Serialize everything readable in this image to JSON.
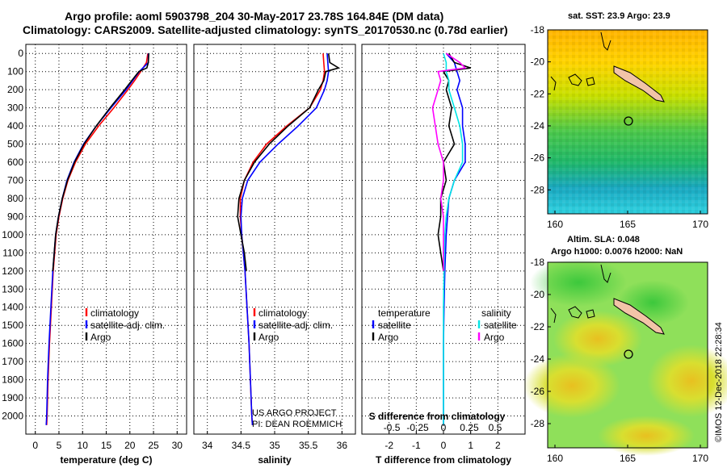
{
  "header": {
    "title_line1": "Argo profile: aoml 5903798_204 30-May-2017 23.78S 164.84E (DM data)",
    "title_line2": "Climatology: CARS2009. Satellite-adjusted climatology: synTS_20170530.nc (0.78d earlier)"
  },
  "colors": {
    "climatology": "#ff0000",
    "satellite": "#0000ff",
    "argo": "#000000",
    "t_satellite": "#0000ff",
    "t_argo": "#000000",
    "s_satellite": "#00e5e5",
    "s_argo": "#ff00ff"
  },
  "credits": {
    "line1": "US ARGO PROJECT",
    "line2": "PI: DEAN ROEMMICH"
  },
  "stamp": "©IMOS 12-Dec-2018 22:28:34",
  "chart_data": [
    {
      "type": "line",
      "id": "temperature",
      "xlabel": "temperature (deg C)",
      "xlim": [
        -2,
        32
      ],
      "xticks": [
        0,
        5,
        10,
        15,
        20,
        25,
        30
      ],
      "ylim": [
        2100,
        -50
      ],
      "yticks": [
        0,
        100,
        200,
        300,
        400,
        500,
        600,
        700,
        800,
        900,
        1000,
        1100,
        1200,
        1300,
        1400,
        1500,
        1600,
        1700,
        1800,
        1900,
        2000
      ],
      "grid": true,
      "legend": [
        "climatology",
        "satellite-adj. clim.",
        "Argo"
      ],
      "series": [
        {
          "name": "climatology",
          "color": "#ff0000",
          "depth": [
            0,
            50,
            100,
            150,
            200,
            300,
            400,
            500,
            600,
            700,
            800,
            900,
            1000,
            1200,
            1400,
            1600,
            1800,
            2000,
            2050
          ],
          "values": [
            23.8,
            23.5,
            22.3,
            21.0,
            19.6,
            16.6,
            13.4,
            10.6,
            8.5,
            6.9,
            5.8,
            5.0,
            4.4,
            3.8,
            3.4,
            3.0,
            2.7,
            2.5,
            2.4
          ]
        },
        {
          "name": "satellite-adj. clim.",
          "color": "#0000ff",
          "depth": [
            0,
            50,
            100,
            150,
            200,
            300,
            400,
            500,
            600,
            700,
            800,
            900,
            1000,
            1200,
            1400,
            1600,
            1800,
            2000,
            2050
          ],
          "values": [
            23.9,
            23.9,
            22.0,
            20.6,
            19.2,
            16.0,
            12.9,
            10.2,
            8.2,
            6.7,
            5.7,
            4.9,
            4.3,
            3.7,
            3.3,
            2.9,
            2.6,
            2.4,
            2.3
          ]
        },
        {
          "name": "Argo",
          "color": "#000000",
          "depth": [
            0,
            50,
            80,
            100,
            150,
            200,
            300,
            400,
            500,
            600,
            700,
            800,
            900,
            1000,
            1100,
            1200
          ],
          "values": [
            24.0,
            23.9,
            23.6,
            21.9,
            20.4,
            18.9,
            15.8,
            12.9,
            10.3,
            8.3,
            6.8,
            5.7,
            4.9,
            4.3,
            4.0,
            3.7
          ]
        }
      ]
    },
    {
      "type": "line",
      "id": "salinity",
      "xlabel": "salinity",
      "xlim": [
        33.8,
        36.2
      ],
      "xticks": [
        34,
        34.5,
        35,
        35.5,
        36
      ],
      "ylim": [
        2100,
        -50
      ],
      "grid": true,
      "legend": [
        "climatology",
        "satellite-adj. clim.",
        "Argo"
      ],
      "series": [
        {
          "name": "climatology",
          "color": "#ff0000",
          "depth": [
            0,
            50,
            100,
            150,
            200,
            300,
            400,
            500,
            600,
            700,
            800,
            900,
            1000,
            1200,
            1400,
            1600,
            1800,
            2000,
            2050
          ],
          "values": [
            35.72,
            35.73,
            35.74,
            35.72,
            35.68,
            35.52,
            35.18,
            34.88,
            34.68,
            34.55,
            34.49,
            34.49,
            34.51,
            34.56,
            34.59,
            34.62,
            34.64,
            34.66,
            34.67
          ]
        },
        {
          "name": "satellite-adj. clim.",
          "color": "#0000ff",
          "depth": [
            0,
            50,
            100,
            150,
            200,
            300,
            400,
            500,
            600,
            700,
            800,
            900,
            1000,
            1200,
            1400,
            1600,
            1800,
            2000,
            2050
          ],
          "values": [
            35.78,
            35.79,
            35.8,
            35.78,
            35.74,
            35.62,
            35.35,
            35.05,
            34.78,
            34.6,
            34.52,
            34.5,
            34.51,
            34.56,
            34.59,
            34.62,
            34.64,
            34.66,
            34.67
          ]
        },
        {
          "name": "Argo",
          "color": "#000000",
          "depth": [
            0,
            50,
            80,
            100,
            150,
            200,
            300,
            400,
            500,
            600,
            700,
            800,
            900,
            1000,
            1100,
            1200
          ],
          "values": [
            35.8,
            35.82,
            35.95,
            35.76,
            35.73,
            35.65,
            35.52,
            35.2,
            34.92,
            34.7,
            34.55,
            34.47,
            34.45,
            34.5,
            34.55,
            34.58
          ]
        }
      ]
    },
    {
      "type": "line",
      "id": "difference",
      "xlabel": "T difference from climatology",
      "xlabel_top": "S difference from climatology",
      "xlim": [
        -3,
        3
      ],
      "xticks": [
        -2,
        -1,
        0,
        1,
        2
      ],
      "sticks": [
        "-0.5",
        "-0.25",
        "0",
        "0.25",
        "0.5"
      ],
      "ylim": [
        2100,
        -50
      ],
      "grid": true,
      "legend_left_title": "temperature",
      "legend_right_title": "salinity",
      "legend": [
        "satellite",
        "Argo",
        "satellite",
        "Argo"
      ],
      "series": [
        {
          "name": "T satellite",
          "color": "#0000ff",
          "depth": [
            0,
            50,
            100,
            150,
            200,
            300,
            400,
            500,
            600,
            700,
            800,
            900,
            1000,
            1200,
            1400,
            1600,
            1800,
            2000,
            2050
          ],
          "values": [
            0.1,
            0.4,
            0.5,
            0.6,
            0.5,
            0.7,
            0.7,
            0.8,
            0.8,
            0.4,
            0.2,
            0.15,
            0.1,
            0.05,
            0.02,
            0,
            0,
            0,
            0
          ]
        },
        {
          "name": "T Argo",
          "color": "#000000",
          "depth": [
            0,
            50,
            80,
            100,
            150,
            200,
            300,
            400,
            500,
            600,
            700,
            800,
            900,
            1000,
            1100,
            1200
          ],
          "values": [
            0.2,
            0.4,
            1.0,
            0.0,
            0.2,
            0.1,
            0.3,
            0.2,
            0.4,
            0.0,
            0.1,
            -0.1,
            -0.1,
            -0.2,
            -0.1,
            0
          ]
        },
        {
          "name": "S satellite",
          "color": "#00e5e5",
          "depth": [
            0,
            50,
            100,
            150,
            200,
            300,
            400,
            500,
            600,
            700,
            800,
            900,
            1000,
            1200,
            1400,
            1600,
            1800,
            2000,
            2050
          ],
          "values": [
            0.0,
            0.1,
            0.1,
            0.2,
            0.2,
            0.4,
            0.6,
            0.7,
            0.7,
            0.4,
            0.2,
            0.1,
            0.05,
            0.02,
            0,
            0,
            0,
            0,
            0
          ]
        },
        {
          "name": "S Argo",
          "color": "#ff00ff",
          "depth": [
            0,
            50,
            80,
            100,
            150,
            200,
            300,
            400,
            500,
            600,
            700,
            800,
            900,
            1000,
            1100,
            1200
          ],
          "values": [
            0.1,
            0.6,
            0.8,
            -0.2,
            -0.1,
            -0.2,
            -0.4,
            -0.3,
            -0.2,
            0.0,
            0.0,
            -0.1,
            0.0,
            0.0,
            0.0,
            0.0
          ]
        }
      ]
    },
    {
      "type": "heatmap",
      "id": "sst_map",
      "title": "sat. SST: 23.9  Argo: 23.9",
      "xlim": [
        159.5,
        170.5
      ],
      "ylim": [
        -29.5,
        -18
      ],
      "xticks": [
        160,
        165,
        170
      ],
      "yticks": [
        -18,
        -20,
        -22,
        -24,
        -26,
        -28
      ],
      "argo_position": {
        "lon": 164.84,
        "lat": -23.78
      }
    },
    {
      "type": "heatmap",
      "id": "sla_map",
      "title_line1": "Altim. SLA: 0.048",
      "title_line2": "Argo h1000: 0.0076 h2000: NaN",
      "xlim": [
        159.5,
        170.5
      ],
      "ylim": [
        -29.5,
        -18
      ],
      "xticks": [
        160,
        165,
        170
      ],
      "yticks": [
        -18,
        -20,
        -22,
        -24,
        -26,
        -28
      ],
      "argo_position": {
        "lon": 164.84,
        "lat": -23.78
      }
    }
  ]
}
